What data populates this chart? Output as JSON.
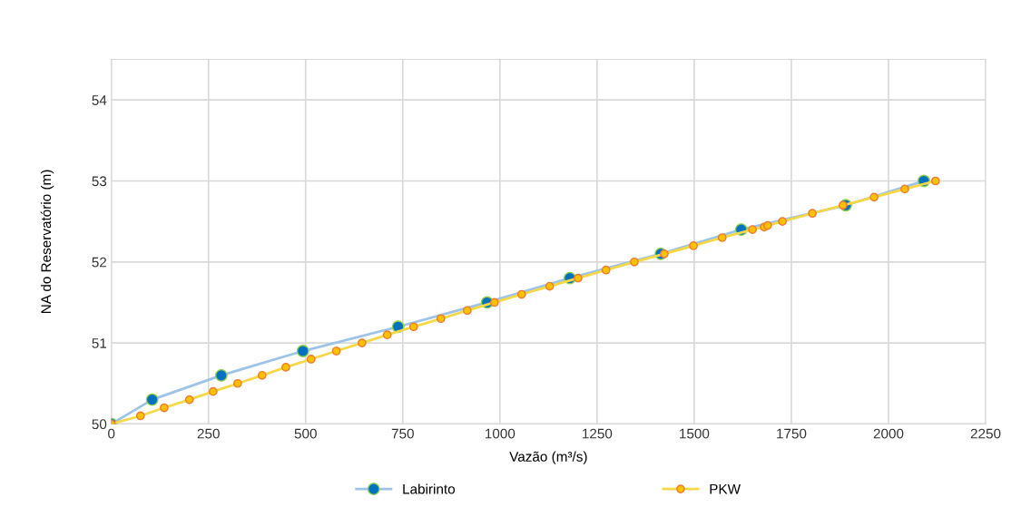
{
  "chart_data": {
    "type": "line",
    "xlabel": "Vazão (m³/s)",
    "ylabel": "NA do Reservatório (m)",
    "xlim": [
      0,
      2250
    ],
    "xticks": [
      0,
      250,
      500,
      750,
      1000,
      1250,
      1500,
      1750,
      2000,
      2250
    ],
    "ylim": [
      50,
      54.5
    ],
    "yticks": [
      50,
      51,
      52,
      53,
      54
    ],
    "grid": true,
    "legend": "bottom",
    "marker": "circle",
    "series": [
      {
        "name": "Labirinto",
        "color": "#9dc3e6",
        "x": [
          0,
          105,
          283,
          493,
          738,
          967,
          1180,
          1414,
          1621,
          1890,
          2091
        ],
        "values": [
          50,
          50.3,
          50.6,
          50.9,
          51.2,
          51.5,
          51.8,
          52.1,
          52.4,
          52.7,
          53.0
        ]
      },
      {
        "name": "PKW",
        "color": "#f5d848",
        "x": [
          0,
          75,
          136,
          201,
          262,
          325,
          388,
          449,
          514,
          579,
          645,
          710,
          778,
          848,
          916,
          986,
          1056,
          1128,
          1201,
          1273,
          1346,
          1423,
          1498,
          1572,
          1650,
          1680,
          1689,
          1727,
          1804,
          1883,
          1963,
          2042,
          2121
        ],
        "values": [
          50,
          50.1,
          50.2,
          50.3,
          50.4,
          50.5,
          50.6,
          50.7,
          50.8,
          50.9,
          51.0,
          51.1,
          51.2,
          51.3,
          51.4,
          51.5,
          51.6,
          51.7,
          51.8,
          51.9,
          52.0,
          52.1,
          52.2,
          52.3,
          52.4,
          52.43,
          52.45,
          52.5,
          52.6,
          52.7,
          52.8,
          52.9,
          53.0
        ]
      }
    ]
  }
}
